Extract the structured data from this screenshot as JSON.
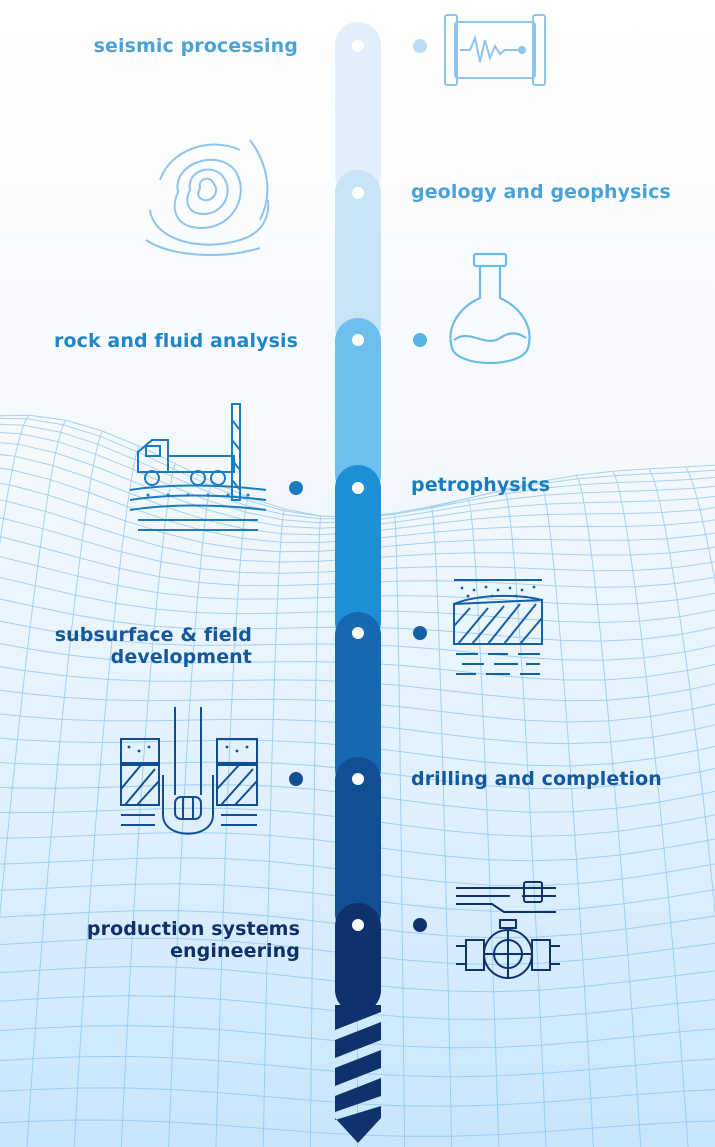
{
  "stages": [
    {
      "label_lines": [
        "seismic processing"
      ],
      "side": "left",
      "color": "#4aa3d8",
      "icon": "seismograph-icon"
    },
    {
      "label_lines": [
        "geology and geophysics"
      ],
      "side": "right",
      "color": "#4aa3d8",
      "icon": "contour-map-icon"
    },
    {
      "label_lines": [
        "rock and fluid analysis"
      ],
      "side": "left",
      "color": "#1f86c9",
      "icon": "flask-icon"
    },
    {
      "label_lines": [
        "petrophysics"
      ],
      "side": "right",
      "color": "#1a7cc0",
      "icon": "drilling-truck-icon"
    },
    {
      "label_lines": [
        "subsurface & field",
        "development"
      ],
      "side": "left",
      "color": "#13589b",
      "icon": "subsurface-layers-icon"
    },
    {
      "label_lines": [
        "drilling and completion"
      ],
      "side": "right",
      "color": "#13589b",
      "icon": "drill-bit-icon"
    },
    {
      "label_lines": [
        "production systems",
        "engineering"
      ],
      "side": "left",
      "color": "#0e2f67",
      "icon": "pipeline-valve-icon"
    }
  ],
  "colors": {
    "drill_top": "#dcedfa",
    "drill_bottom": "#10306a",
    "mesh": "#8fc4ec"
  }
}
